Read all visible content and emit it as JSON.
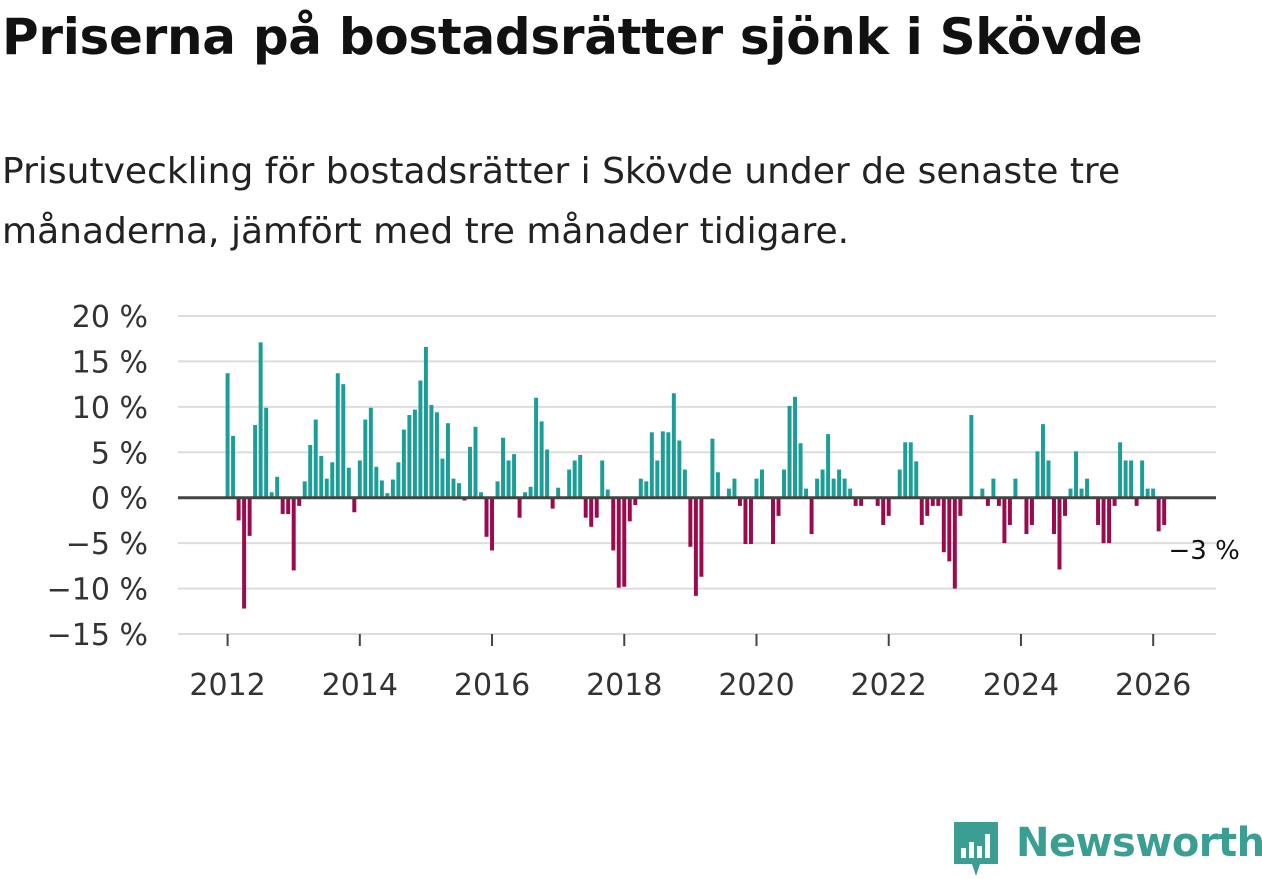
{
  "title": "Priserna på bostadsrätter sjönk i Skövde",
  "subtitle": "Prisutveckling för bostadsrätter i Skövde under de senaste tre månaderna, jämfört med tre månader tidigare.",
  "brand": {
    "name": "Newsworthy"
  },
  "colors": {
    "positive": "#1a9e96",
    "negative": "#9b0a4c",
    "grid": "#dddddd",
    "zero": "#444444",
    "text": "#333333"
  },
  "chart_data": {
    "type": "bar",
    "title": "Priserna på bostadsrätter sjönk i Skövde",
    "xlabel": "",
    "ylabel": "",
    "x_start": 2012.0,
    "x_step": 0.08333,
    "xlim": [
      2011.25,
      2026.95
    ],
    "ylim": [
      -15,
      20
    ],
    "y_ticks": [
      20,
      15,
      10,
      5,
      0,
      -5,
      -10,
      -15
    ],
    "y_tick_labels": [
      "20 %",
      "15 %",
      "10 %",
      "5 %",
      "0 %",
      "−5 %",
      "−10 %",
      "−15 %"
    ],
    "x_ticks": [
      2012,
      2014,
      2016,
      2018,
      2020,
      2022,
      2024,
      2026
    ],
    "x_tick_labels": [
      "2012",
      "2014",
      "2016",
      "2018",
      "2020",
      "2022",
      "2024",
      "2026"
    ],
    "annotation": {
      "text": "−3 %",
      "value": -3
    },
    "values": [
      13.7,
      6.8,
      -2.5,
      -12.2,
      -4.2,
      8.0,
      17.1,
      9.9,
      0.6,
      2.3,
      -1.8,
      -1.8,
      -8.0,
      -0.9,
      1.8,
      5.8,
      8.6,
      4.6,
      2.1,
      3.9,
      13.7,
      12.5,
      3.3,
      -1.6,
      4.1,
      8.6,
      9.9,
      3.4,
      1.9,
      0.5,
      2.0,
      3.9,
      7.5,
      9.1,
      9.7,
      12.9,
      16.6,
      10.2,
      9.4,
      4.3,
      8.2,
      2.1,
      1.6,
      -0.3,
      5.6,
      7.8,
      0.6,
      -4.3,
      -5.8,
      1.8,
      6.6,
      4.1,
      4.8,
      -2.2,
      0.6,
      1.2,
      11.0,
      8.4,
      5.3,
      -1.2,
      1.1,
      0.0,
      3.1,
      4.1,
      4.7,
      -2.2,
      -3.2,
      -2.2,
      4.1,
      0.9,
      -5.8,
      -9.9,
      -9.8,
      -2.6,
      -0.8,
      2.1,
      1.8,
      7.2,
      4.1,
      7.3,
      7.2,
      11.5,
      6.3,
      3.1,
      -5.4,
      -10.8,
      -8.7,
      0.0,
      6.5,
      2.8,
      0.0,
      1.0,
      2.1,
      -0.9,
      -5.1,
      -5.1,
      2.1,
      3.1,
      0.0,
      -5.1,
      -2.0,
      3.1,
      10.1,
      11.1,
      6.0,
      1.0,
      -4.0,
      2.1,
      3.1,
      7.0,
      2.1,
      3.1,
      2.1,
      1.0,
      -0.9,
      -0.9,
      0.0,
      0.0,
      -0.9,
      -3.0,
      -2.0,
      0.0,
      3.1,
      6.1,
      6.1,
      4.0,
      -3.0,
      -2.0,
      -0.9,
      -0.9,
      -6.0,
      -7.0,
      -10.0,
      -2.0,
      0.0,
      9.1,
      0.0,
      1.0,
      -0.9,
      2.1,
      -0.9,
      -5.0,
      -3.0,
      2.1,
      0.0,
      -4.0,
      -3.0,
      5.1,
      8.1,
      4.1,
      -4.0,
      -7.9,
      -2.0,
      1.0,
      5.1,
      1.0,
      2.1,
      0.0,
      -3.0,
      -5.0,
      -5.0,
      -0.9,
      6.1,
      4.1,
      4.1,
      -0.9,
      4.1,
      1.0,
      1.0,
      -3.7,
      -3.0
    ]
  }
}
